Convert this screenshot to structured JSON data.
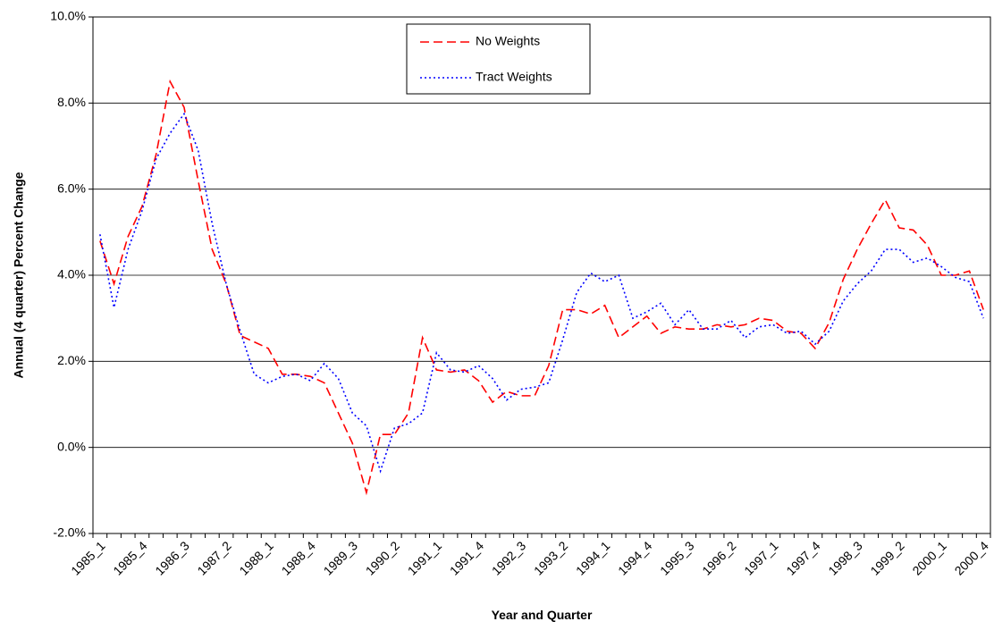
{
  "chart_data": {
    "type": "line",
    "x_label": "Year and Quarter",
    "y_label": "Annual (4 quarter) Percent Change",
    "categories": [
      "1985_1",
      null,
      null,
      "1985_4",
      null,
      null,
      "1986_3",
      null,
      null,
      "1987_2",
      null,
      null,
      "1988_1",
      null,
      null,
      "1988_4",
      null,
      null,
      "1989_3",
      null,
      null,
      "1990_2",
      null,
      null,
      "1991_1",
      null,
      null,
      "1991_4",
      null,
      null,
      "1992_3",
      null,
      null,
      "1993_2",
      null,
      null,
      "1994_1",
      null,
      null,
      "1994_4",
      null,
      null,
      "1995_3",
      null,
      null,
      "1996_2",
      null,
      null,
      "1997_1",
      null,
      null,
      "1997_4",
      null,
      null,
      "1998_3",
      null,
      null,
      "1999_2",
      null,
      null,
      "2000_1",
      null,
      null,
      "2000_4"
    ],
    "series": [
      {
        "name": "No Weights",
        "color": "#ff0000",
        "dash": "10,5",
        "values": [
          4.8,
          3.8,
          4.9,
          5.6,
          6.8,
          8.5,
          7.9,
          6.2,
          4.6,
          3.8,
          2.6,
          2.45,
          2.3,
          1.7,
          1.7,
          1.65,
          1.5,
          0.8,
          0.1,
          -1.05,
          0.3,
          0.3,
          0.8,
          2.55,
          1.8,
          1.75,
          1.8,
          1.55,
          1.05,
          1.3,
          1.2,
          1.2,
          1.9,
          3.2,
          3.2,
          3.1,
          3.3,
          2.55,
          2.8,
          3.05,
          2.65,
          2.8,
          2.75,
          2.75,
          2.85,
          2.8,
          2.85,
          3.0,
          2.95,
          2.7,
          2.65,
          2.3,
          2.9,
          3.9,
          4.6,
          5.2,
          5.75,
          5.1,
          5.05,
          4.7,
          4.0,
          4.0,
          4.1,
          3.2
        ]
      },
      {
        "name": "Tract Weights",
        "color": "#0000ff",
        "dash": "2,3",
        "values": [
          4.95,
          3.25,
          4.6,
          5.5,
          6.7,
          7.3,
          7.75,
          6.9,
          5.2,
          3.8,
          2.7,
          1.7,
          1.5,
          1.65,
          1.7,
          1.55,
          1.95,
          1.6,
          0.8,
          0.5,
          -0.55,
          0.45,
          0.55,
          0.8,
          2.2,
          1.8,
          1.75,
          1.9,
          1.6,
          1.1,
          1.35,
          1.4,
          1.5,
          2.5,
          3.6,
          4.05,
          3.85,
          4.0,
          3.0,
          3.15,
          3.35,
          2.85,
          3.2,
          2.75,
          2.75,
          2.95,
          2.55,
          2.8,
          2.85,
          2.65,
          2.7,
          2.4,
          2.7,
          3.4,
          3.8,
          4.1,
          4.6,
          4.6,
          4.3,
          4.4,
          4.2,
          3.95,
          3.85,
          3.0
        ]
      }
    ],
    "ylim": [
      -2,
      10
    ],
    "yticks": [
      {
        "value": -2,
        "label": "-2.0%"
      },
      {
        "value": 0,
        "label": "0.0%"
      },
      {
        "value": 2,
        "label": "2.0%"
      },
      {
        "value": 4,
        "label": "4.0%"
      },
      {
        "value": 6,
        "label": "6.0%"
      },
      {
        "value": 8,
        "label": "8.0%"
      },
      {
        "value": 10,
        "label": "10.0%"
      }
    ],
    "grid": true
  }
}
